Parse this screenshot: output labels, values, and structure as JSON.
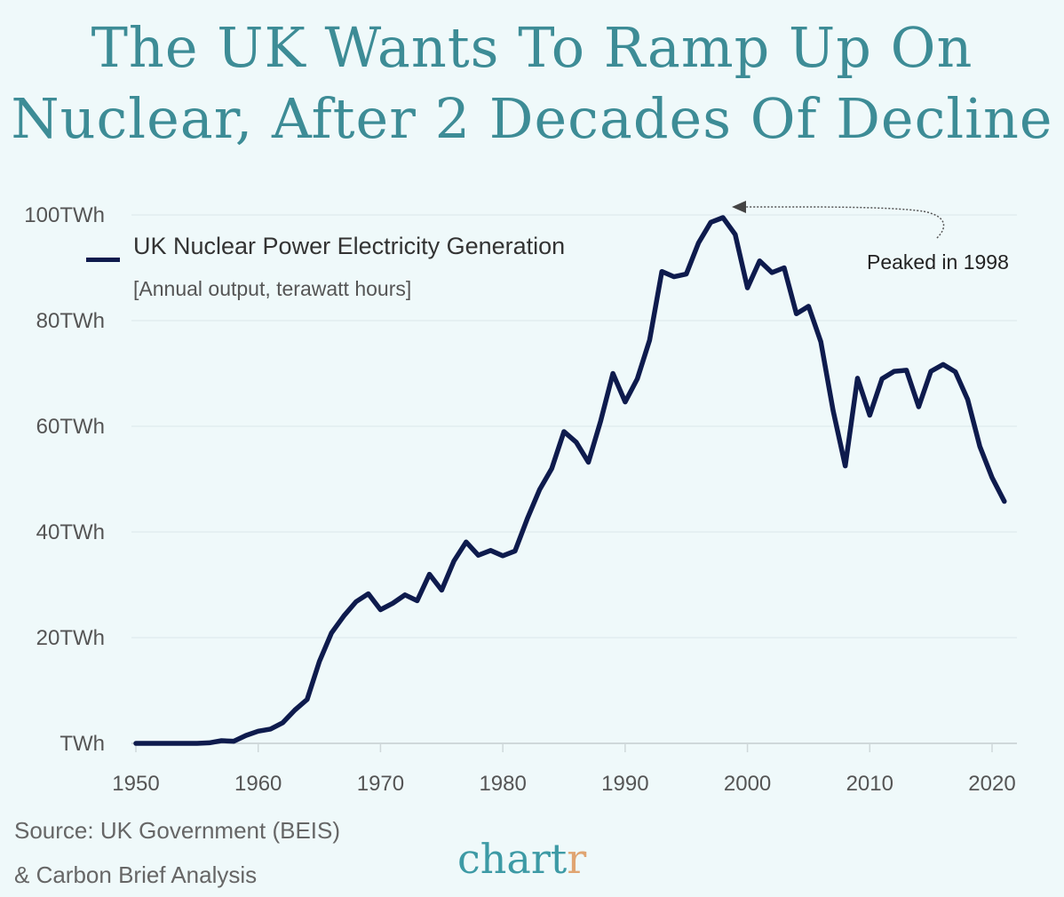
{
  "title_line1": "The UK Wants To Ramp Up On",
  "title_line2": "Nuclear, After 2 Decades Of Decline",
  "annotation": "Peaked in 1998",
  "source_line1": "Source: UK Government (BEIS)",
  "source_line2": "& Carbon Brief Analysis",
  "logo": {
    "main": "chart",
    "accent": "r"
  },
  "colors": {
    "line": "#0e1b4d",
    "title": "#3d8c96",
    "background": "#eff9fa",
    "logo_accent": "#e0a572"
  },
  "chart_data": {
    "type": "line",
    "title": "UK Nuclear Power Electricity Generation",
    "subtitle": "[Annual output, terawatt hours]",
    "legend": "top-left",
    "grid": true,
    "xlim": [
      1950,
      2021
    ],
    "ylim": [
      0,
      100
    ],
    "x_ticks": [
      "1950",
      "1960",
      "1970",
      "1980",
      "1990",
      "2000",
      "2010",
      "2020"
    ],
    "y_ticks": [
      "TWh",
      "20TWh",
      "40TWh",
      "60TWh",
      "80TWh",
      "100TWh"
    ],
    "series": [
      {
        "name": "UK Nuclear Power Electricity Generation",
        "x": [
          1950,
          1951,
          1952,
          1953,
          1954,
          1955,
          1956,
          1957,
          1958,
          1959,
          1960,
          1961,
          1962,
          1963,
          1964,
          1965,
          1966,
          1967,
          1968,
          1969,
          1970,
          1971,
          1972,
          1973,
          1974,
          1975,
          1976,
          1977,
          1978,
          1979,
          1980,
          1981,
          1982,
          1983,
          1984,
          1985,
          1986,
          1987,
          1988,
          1989,
          1990,
          1991,
          1992,
          1993,
          1994,
          1995,
          1996,
          1997,
          1998,
          1999,
          2000,
          2001,
          2002,
          2003,
          2004,
          2005,
          2006,
          2007,
          2008,
          2009,
          2010,
          2011,
          2012,
          2013,
          2014,
          2015,
          2016,
          2017,
          2018,
          2019,
          2020,
          2021
        ],
        "values": [
          0,
          0,
          0,
          0,
          0,
          0,
          0.1,
          0.5,
          0.4,
          1.5,
          2.3,
          2.7,
          3.9,
          6.3,
          8.3,
          15.5,
          20.9,
          24.1,
          26.8,
          28.3,
          25.3,
          26.5,
          28.1,
          27.0,
          32.0,
          29.0,
          34.5,
          38.1,
          35.6,
          36.5,
          35.5,
          36.4,
          42.5,
          48.0,
          52.0,
          59.0,
          57.0,
          53.2,
          61.0,
          70.0,
          64.6,
          69.0,
          76.3,
          89.3,
          88.3,
          88.8,
          94.7,
          98.6,
          99.5,
          96.3,
          86.2,
          91.3,
          89.1,
          90.0,
          81.3,
          82.7,
          76.0,
          63.0,
          52.5,
          69.1,
          62.1,
          69.0,
          70.4,
          70.6,
          63.7,
          70.4,
          71.7,
          70.3,
          65.1,
          56.2,
          50.3,
          45.8
        ]
      }
    ],
    "annotations": [
      {
        "text": "Peaked in 1998",
        "x": 1998,
        "y": 99.5
      }
    ]
  }
}
